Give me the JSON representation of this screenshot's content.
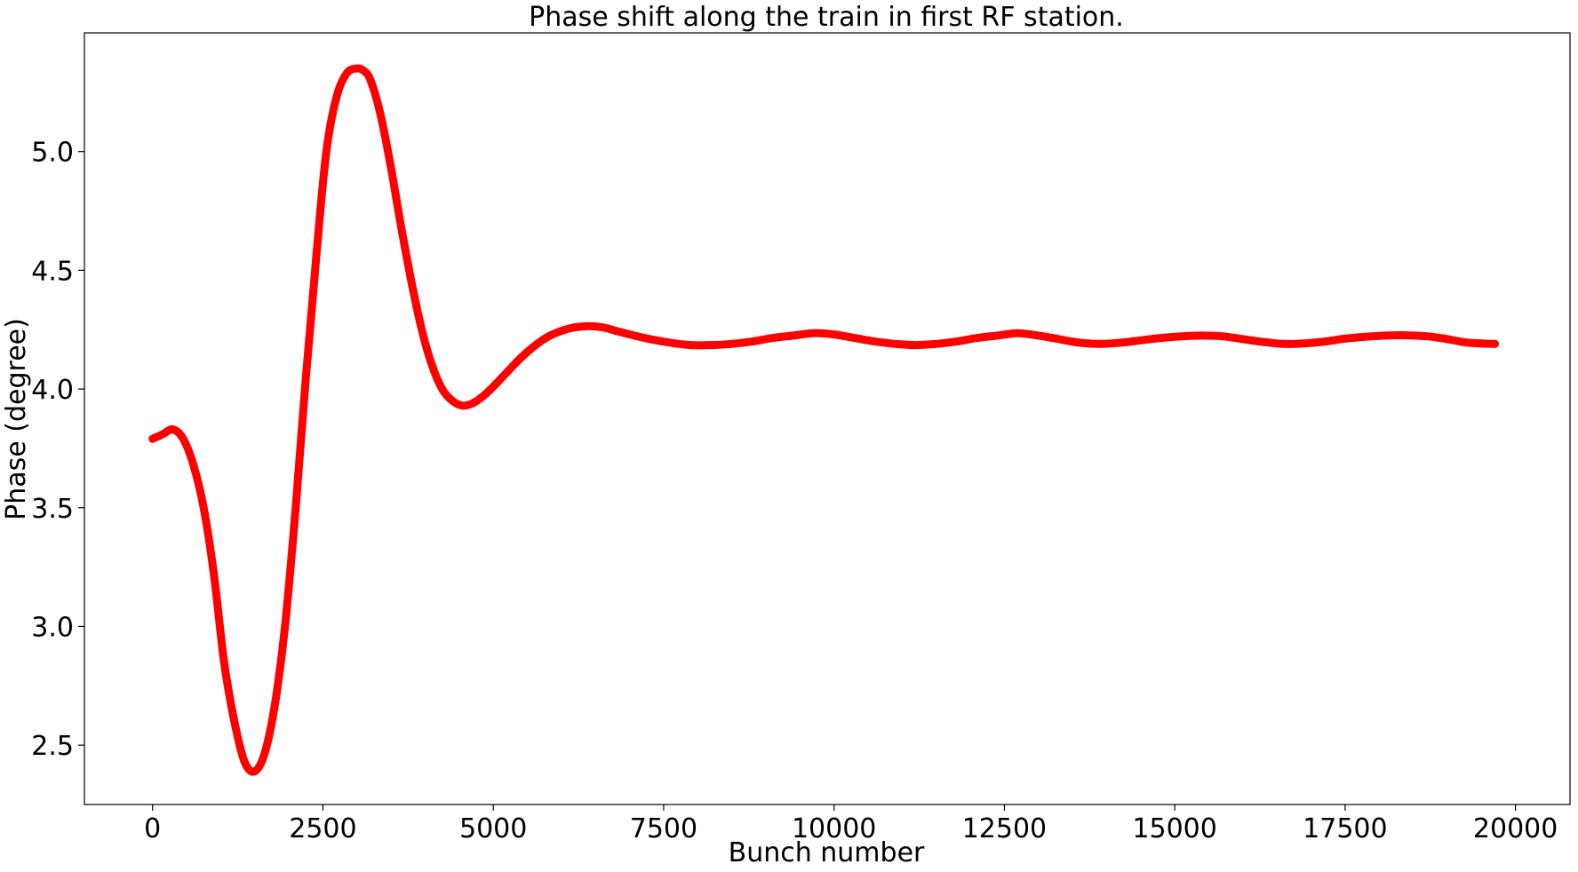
{
  "chart_data": {
    "type": "line",
    "title": "Phase shift along the train in first RF station.",
    "xlabel": "Bunch number",
    "ylabel": "Phase (degree)",
    "xlim": [
      -1000,
      20800
    ],
    "ylim": [
      2.25,
      5.5
    ],
    "xticks": [
      0,
      2500,
      5000,
      7500,
      10000,
      12500,
      15000,
      17500,
      20000
    ],
    "xtick_labels": [
      "0",
      "2500",
      "5000",
      "7500",
      "10000",
      "12500",
      "15000",
      "17500",
      "20000"
    ],
    "yticks": [
      2.5,
      3.0,
      3.5,
      4.0,
      4.5,
      5.0
    ],
    "ytick_labels": [
      "2.5",
      "3.0",
      "3.5",
      "4.0",
      "4.5",
      "5.0"
    ],
    "grid": false,
    "legend": "none",
    "series": [
      {
        "color": "#ff0000",
        "x": [
          0,
          150,
          300,
          450,
          600,
          750,
          900,
          1050,
          1200,
          1350,
          1500,
          1650,
          1800,
          1950,
          2100,
          2250,
          2400,
          2550,
          2700,
          2850,
          3000,
          3100,
          3200,
          3350,
          3500,
          3650,
          3800,
          3950,
          4100,
          4250,
          4400,
          4550,
          4700,
          4850,
          5000,
          5200,
          5400,
          5600,
          5800,
          6000,
          6200,
          6400,
          6600,
          6800,
          7000,
          7300,
          7600,
          7900,
          8200,
          8500,
          8800,
          9100,
          9400,
          9700,
          10000,
          10300,
          10600,
          10900,
          11200,
          11500,
          11800,
          12100,
          12400,
          12700,
          13000,
          13300,
          13600,
          13900,
          14200,
          14500,
          14800,
          15100,
          15400,
          15700,
          16000,
          16300,
          16600,
          16900,
          17200,
          17500,
          17800,
          18100,
          18400,
          18700,
          19000,
          19300,
          19700
        ],
        "y": [
          3.79,
          3.81,
          3.83,
          3.79,
          3.68,
          3.5,
          3.22,
          2.85,
          2.6,
          2.43,
          2.39,
          2.47,
          2.68,
          3.02,
          3.5,
          4.05,
          4.55,
          5.0,
          5.23,
          5.33,
          5.35,
          5.34,
          5.3,
          5.15,
          4.93,
          4.68,
          4.45,
          4.25,
          4.1,
          4.0,
          3.95,
          3.93,
          3.94,
          3.97,
          4.01,
          4.07,
          4.13,
          4.18,
          4.22,
          4.245,
          4.26,
          4.265,
          4.26,
          4.245,
          4.23,
          4.21,
          4.195,
          4.185,
          4.185,
          4.19,
          4.2,
          4.215,
          4.225,
          4.235,
          4.23,
          4.215,
          4.2,
          4.19,
          4.185,
          4.19,
          4.2,
          4.215,
          4.225,
          4.235,
          4.225,
          4.21,
          4.195,
          4.19,
          4.195,
          4.205,
          4.215,
          4.222,
          4.225,
          4.222,
          4.21,
          4.198,
          4.19,
          4.192,
          4.2,
          4.212,
          4.22,
          4.225,
          4.226,
          4.222,
          4.21,
          4.195,
          4.19
        ]
      }
    ]
  }
}
